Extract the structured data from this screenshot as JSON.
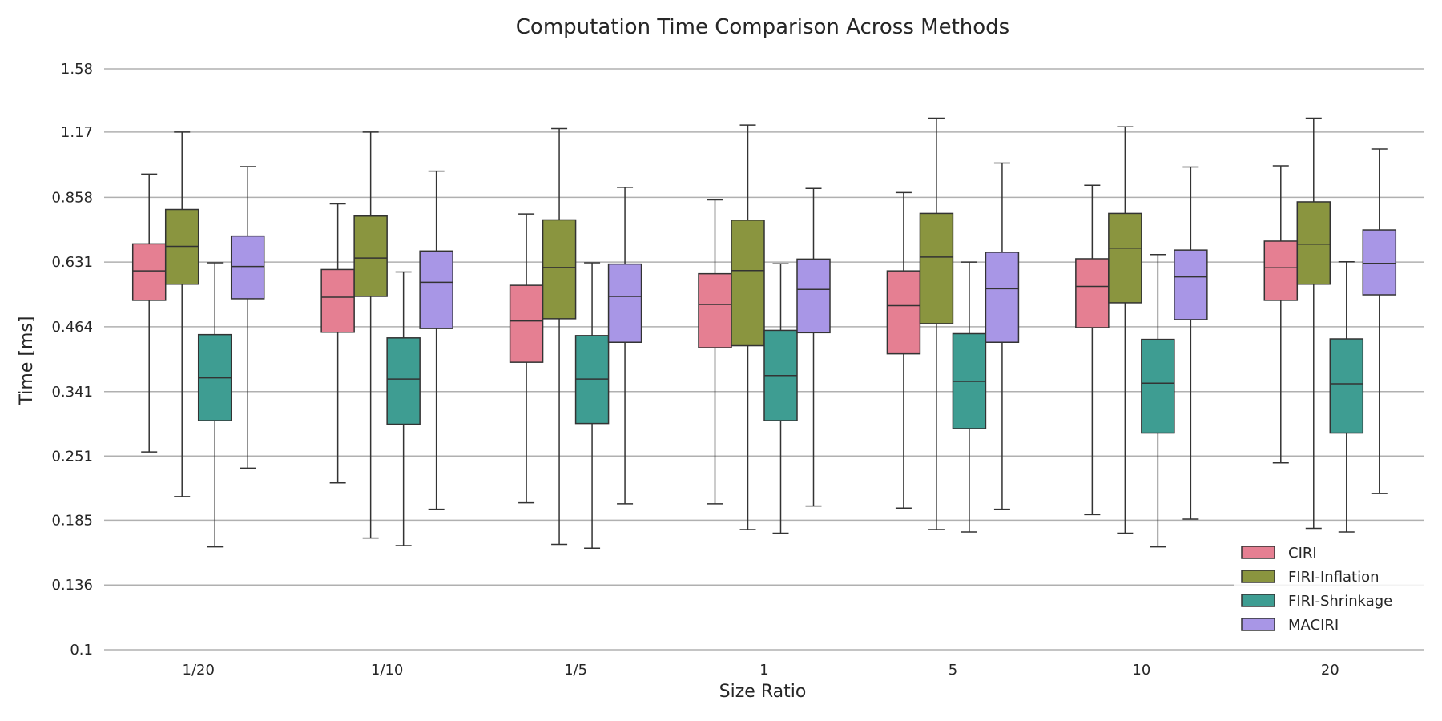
{
  "chart_data": {
    "type": "boxplot",
    "title": "Computation Time Comparison Across Methods",
    "xlabel": "Size Ratio",
    "ylabel": "Time [ms]",
    "y_scale": "log",
    "ylim": [
      0.1,
      1.58
    ],
    "y_ticks": [
      {
        "value": 0.1,
        "label": "0.1"
      },
      {
        "value": 0.136,
        "label": "0.136"
      },
      {
        "value": 0.185,
        "label": "0.185"
      },
      {
        "value": 0.251,
        "label": "0.251"
      },
      {
        "value": 0.341,
        "label": "0.341"
      },
      {
        "value": 0.464,
        "label": "0.464"
      },
      {
        "value": 0.631,
        "label": "0.631"
      },
      {
        "value": 0.858,
        "label": "0.858"
      },
      {
        "value": 1.17,
        "label": "1.17"
      },
      {
        "value": 1.58,
        "label": "1.58"
      }
    ],
    "grid": true,
    "legend_position": "bottom-right",
    "categories": [
      "1/20",
      "1/10",
      "1/5",
      "1",
      "5",
      "10",
      "20"
    ],
    "series": [
      {
        "name": "CIRI",
        "color": "#e57f92",
        "boxes": [
          {
            "whislo": 0.256,
            "q1": 0.526,
            "med": 0.605,
            "q3": 0.688,
            "whishi": 0.958
          },
          {
            "whislo": 0.221,
            "q1": 0.452,
            "med": 0.534,
            "q3": 0.609,
            "whishi": 0.832
          },
          {
            "whislo": 0.201,
            "q1": 0.392,
            "med": 0.477,
            "q3": 0.565,
            "whishi": 0.793
          },
          {
            "whislo": 0.2,
            "q1": 0.42,
            "med": 0.516,
            "q3": 0.597,
            "whishi": 0.848
          },
          {
            "whislo": 0.196,
            "q1": 0.408,
            "med": 0.513,
            "q3": 0.605,
            "whishi": 0.878
          },
          {
            "whislo": 0.19,
            "q1": 0.462,
            "med": 0.562,
            "q3": 0.641,
            "whishi": 0.909
          },
          {
            "whislo": 0.243,
            "q1": 0.526,
            "med": 0.614,
            "q3": 0.697,
            "whishi": 0.997
          }
        ]
      },
      {
        "name": "FIRI-Inflation",
        "color": "#8a953f",
        "boxes": [
          {
            "whislo": 0.207,
            "q1": 0.568,
            "med": 0.68,
            "q3": 0.81,
            "whishi": 1.17
          },
          {
            "whislo": 0.17,
            "q1": 0.536,
            "med": 0.643,
            "q3": 0.785,
            "whishi": 1.17
          },
          {
            "whislo": 0.165,
            "q1": 0.482,
            "med": 0.615,
            "q3": 0.771,
            "whishi": 1.19
          },
          {
            "whislo": 0.177,
            "q1": 0.424,
            "med": 0.606,
            "q3": 0.77,
            "whishi": 1.21
          },
          {
            "whislo": 0.177,
            "q1": 0.471,
            "med": 0.646,
            "q3": 0.795,
            "whishi": 1.25
          },
          {
            "whislo": 0.174,
            "q1": 0.52,
            "med": 0.674,
            "q3": 0.795,
            "whishi": 1.2
          },
          {
            "whislo": 0.178,
            "q1": 0.568,
            "med": 0.687,
            "q3": 0.84,
            "whishi": 1.25
          }
        ]
      },
      {
        "name": "FIRI-Shrinkage",
        "color": "#3e9d92",
        "boxes": [
          {
            "whislo": 0.163,
            "q1": 0.297,
            "med": 0.364,
            "q3": 0.447,
            "whishi": 0.629
          },
          {
            "whislo": 0.164,
            "q1": 0.292,
            "med": 0.362,
            "q3": 0.44,
            "whishi": 0.602
          },
          {
            "whislo": 0.162,
            "q1": 0.293,
            "med": 0.362,
            "q3": 0.445,
            "whishi": 0.629
          },
          {
            "whislo": 0.174,
            "q1": 0.297,
            "med": 0.368,
            "q3": 0.456,
            "whishi": 0.626
          },
          {
            "whislo": 0.175,
            "q1": 0.286,
            "med": 0.358,
            "q3": 0.449,
            "whishi": 0.631
          },
          {
            "whislo": 0.163,
            "q1": 0.28,
            "med": 0.355,
            "q3": 0.437,
            "whishi": 0.654
          },
          {
            "whislo": 0.175,
            "q1": 0.28,
            "med": 0.354,
            "q3": 0.438,
            "whishi": 0.632
          }
        ]
      },
      {
        "name": "MACIRI",
        "color": "#a896e6",
        "boxes": [
          {
            "whislo": 0.237,
            "q1": 0.53,
            "med": 0.618,
            "q3": 0.714,
            "whishi": 0.993
          },
          {
            "whislo": 0.195,
            "q1": 0.46,
            "med": 0.573,
            "q3": 0.665,
            "whishi": 0.972
          },
          {
            "whislo": 0.2,
            "q1": 0.431,
            "med": 0.536,
            "q3": 0.625,
            "whishi": 0.9
          },
          {
            "whislo": 0.198,
            "q1": 0.451,
            "med": 0.554,
            "q3": 0.64,
            "whishi": 0.895
          },
          {
            "whislo": 0.195,
            "q1": 0.431,
            "med": 0.556,
            "q3": 0.661,
            "whishi": 1.01
          },
          {
            "whislo": 0.186,
            "q1": 0.48,
            "med": 0.588,
            "q3": 0.668,
            "whishi": 0.991
          },
          {
            "whislo": 0.21,
            "q1": 0.54,
            "med": 0.627,
            "q3": 0.735,
            "whishi": 1.08
          }
        ]
      }
    ]
  }
}
